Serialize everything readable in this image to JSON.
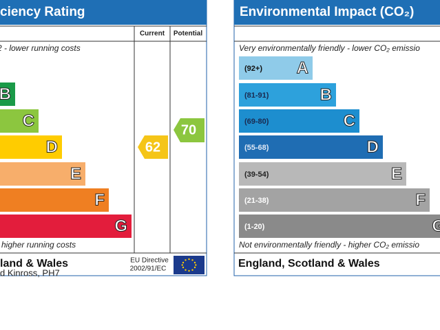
{
  "left_panel": {
    "title": "ciency Rating",
    "column_headers": [
      "Current",
      "Potential"
    ],
    "top_note": "2 - lower running costs",
    "bands": [
      "B",
      "C",
      "D",
      "E",
      "F",
      "G"
    ],
    "current": 62,
    "potential": 70,
    "bottom_note": "higher running costs",
    "footer": "land & Wales",
    "directive": [
      "EU Directive",
      "2002/91/EC"
    ]
  },
  "right_panel": {
    "title": "Environmental Impact (CO₂)",
    "top_note": "Very environmentally friendly - lower CO₂ emissio",
    "bands": [
      {
        "range": "(92+)",
        "letter": "A"
      },
      {
        "range": "(81-91)",
        "letter": "B"
      },
      {
        "range": "(69-80)",
        "letter": "C"
      },
      {
        "range": "(55-68)",
        "letter": "D"
      },
      {
        "range": "(39-54)",
        "letter": "E"
      },
      {
        "range": "(21-38)",
        "letter": "F"
      },
      {
        "range": "(1-20)",
        "letter": "G"
      }
    ],
    "bottom_note": "Not environmentally friendly - higher CO₂ emissio",
    "footer": "England, Scotland & Wales"
  },
  "address": "d Kinross, PH7"
}
